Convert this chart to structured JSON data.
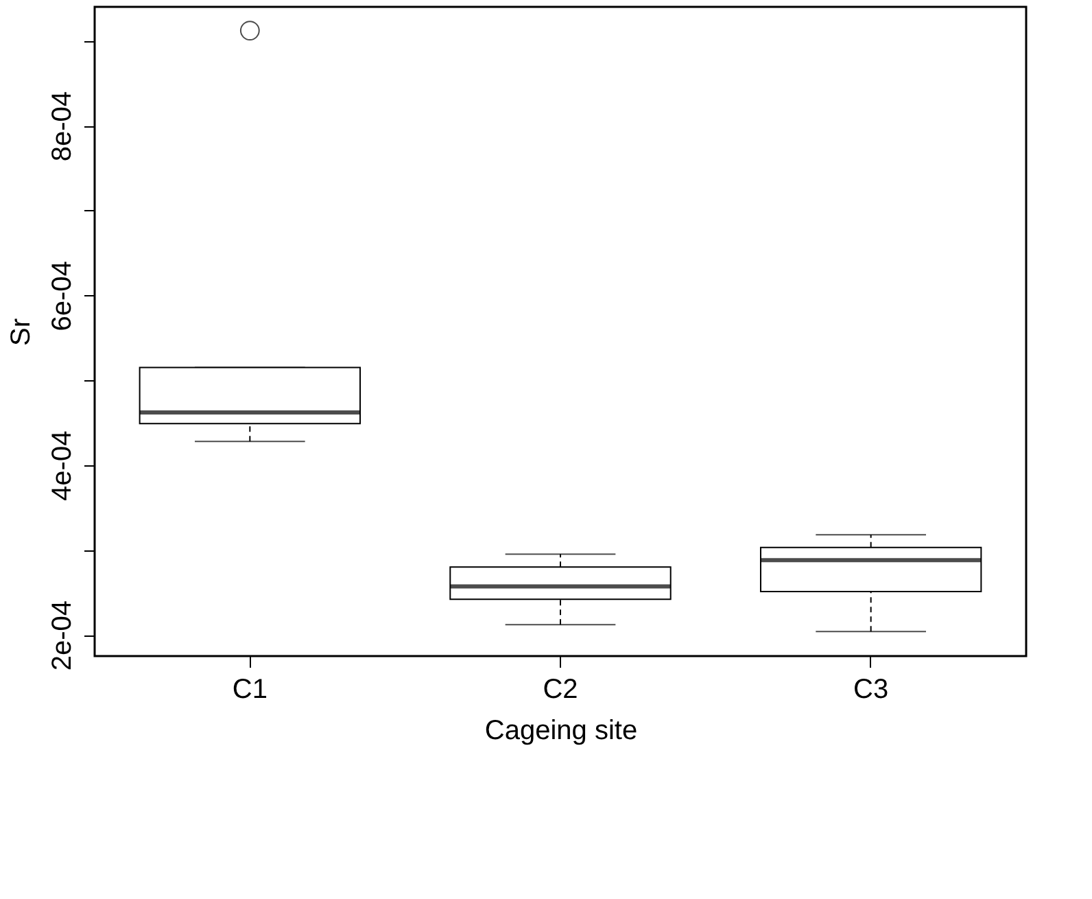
{
  "chart_data": {
    "type": "box",
    "xlabel": "Cageing site",
    "ylabel": "Sr",
    "categories": [
      "C1",
      "C2",
      "C3"
    ],
    "boxes": [
      {
        "low": 0.000428,
        "q1": 0.000449,
        "median": 0.000462,
        "q3": 0.000515,
        "high": 0.000515,
        "outliers": [
          0.000912
        ]
      },
      {
        "low": 0.000212,
        "q1": 0.000242,
        "median": 0.000257,
        "q3": 0.00028,
        "high": 0.000295
      },
      {
        "low": 0.000204,
        "q1": 0.000251,
        "median": 0.000288,
        "q3": 0.000303,
        "high": 0.000318
      }
    ],
    "ylim": [
      0.000175,
      0.00094
    ],
    "yticks": [
      {
        "value": 0.0002,
        "label": "2e-04"
      },
      {
        "value": 0.0003,
        "label": null
      },
      {
        "value": 0.0004,
        "label": "4e-04"
      },
      {
        "value": 0.0005,
        "label": null
      },
      {
        "value": 0.0006,
        "label": "6e-04"
      },
      {
        "value": 0.0007,
        "label": null
      },
      {
        "value": 0.0008,
        "label": "8e-04"
      },
      {
        "value": 0.0009,
        "label": null
      }
    ],
    "grid": false
  }
}
